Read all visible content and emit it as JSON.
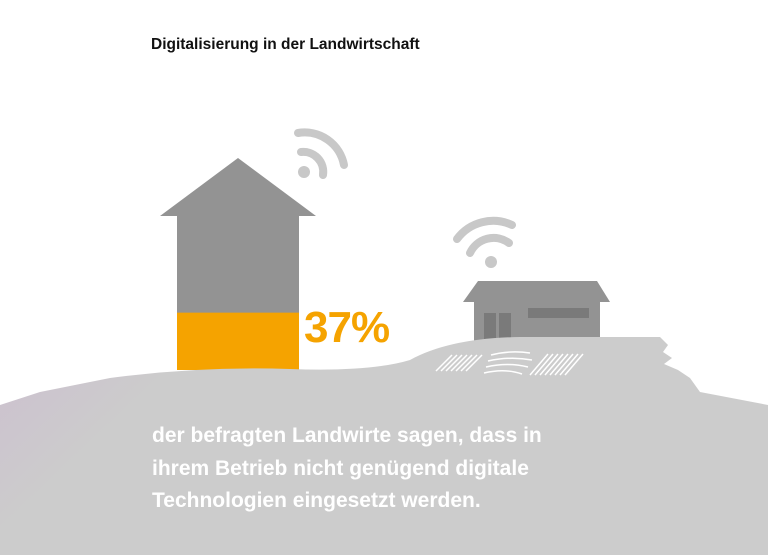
{
  "title": "Digitalisierung in der Landwirtschaft",
  "stat": {
    "value_percent": 37,
    "label": "37%"
  },
  "description_lines": [
    "der befragten Landwirte sagen, dass in",
    "ihrem Betrieb nicht genügend digitale",
    "Technologien eingesetzt werden."
  ],
  "colors": {
    "accent": "#F5A300",
    "house": "#939393",
    "ground": "#cccccc",
    "wifi": "#c8c8c8"
  }
}
